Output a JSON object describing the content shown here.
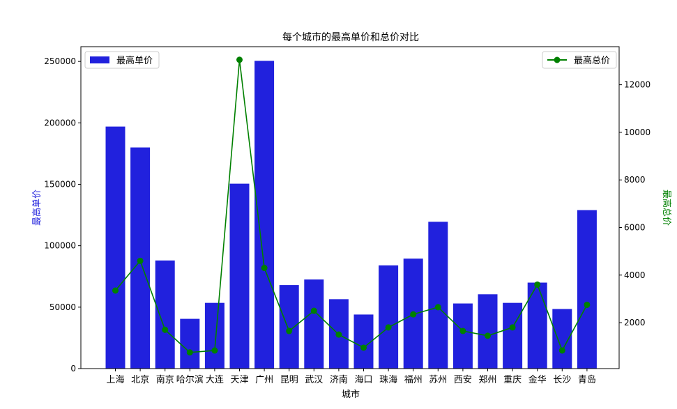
{
  "chart_data": {
    "type": "bar",
    "title": "每个城市的最高单价和总价对比",
    "xlabel": "城市",
    "ylabel": "最高单价",
    "ylabel_right": "最高总价",
    "categories": [
      "上海",
      "北京",
      "南京",
      "哈尔滨",
      "大连",
      "天津",
      "广州",
      "昆明",
      "武汉",
      "济南",
      "海口",
      "珠海",
      "福州",
      "苏州",
      "西安",
      "郑州",
      "重庆",
      "金华",
      "长沙",
      "青岛"
    ],
    "ylim": [
      0,
      262000
    ],
    "ylim_right": [
      70,
      13600
    ],
    "yticks": [
      0,
      50000,
      100000,
      150000,
      200000,
      250000
    ],
    "yticks_right": [
      2000,
      4000,
      6000,
      8000,
      10000,
      12000
    ],
    "grid": false,
    "series": [
      {
        "name": "最高单价",
        "type": "bar",
        "axis": "left",
        "color": "#2121dd",
        "legend_position": "top-left",
        "values": [
          197000,
          180000,
          88000,
          40500,
          53500,
          150500,
          250500,
          68000,
          72500,
          56500,
          44000,
          84000,
          89500,
          119500,
          53000,
          60500,
          53500,
          70000,
          48500,
          129000
        ]
      },
      {
        "name": "最高总价",
        "type": "line",
        "axis": "right",
        "color": "#008000",
        "legend_position": "top-right",
        "values": [
          3350,
          4600,
          1700,
          750,
          830,
          13050,
          4300,
          1650,
          2500,
          1500,
          950,
          1800,
          2350,
          2650,
          1650,
          1450,
          1800,
          3600,
          830,
          2750
        ]
      }
    ]
  }
}
